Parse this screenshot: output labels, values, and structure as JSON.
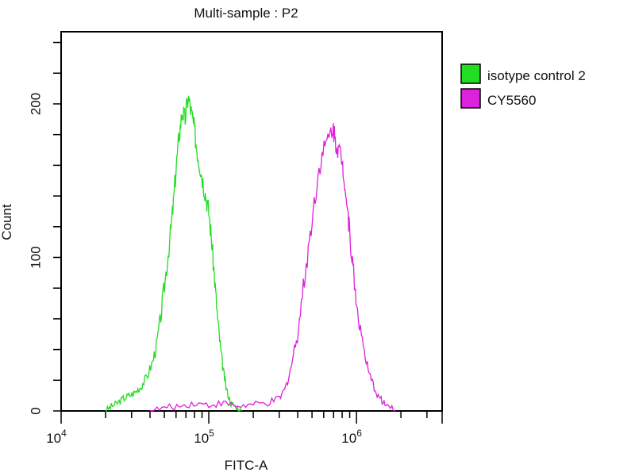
{
  "chart_data": {
    "type": "line",
    "title": "Multi-sample : P2",
    "xlabel": "FITC-A",
    "ylabel": "Count",
    "xscale": "log",
    "xlim_log10": [
      4,
      6.58
    ],
    "ylim": [
      0,
      247
    ],
    "x_ticks": [
      {
        "exp": 4,
        "base": "10",
        "sup": "4"
      },
      {
        "exp": 5,
        "base": "10",
        "sup": "5"
      },
      {
        "exp": 6,
        "base": "10",
        "sup": "6"
      }
    ],
    "y_ticks": [
      0,
      100,
      200
    ],
    "legend_position": "right",
    "series": [
      {
        "name": "isotype control 2",
        "color": "#22dd22",
        "log10_x": [
          4.3,
          4.34,
          4.38,
          4.42,
          4.46,
          4.5,
          4.54,
          4.58,
          4.62,
          4.65,
          4.68,
          4.71,
          4.74,
          4.76,
          4.78,
          4.8,
          4.82,
          4.84,
          4.86,
          4.88,
          4.9,
          4.92,
          4.94,
          4.96,
          4.98,
          5.0,
          5.02,
          5.04,
          5.06,
          5.08,
          5.1,
          5.12,
          5.15,
          5.18,
          5.22
        ],
        "counts": [
          0,
          3,
          5,
          8,
          10,
          12,
          16,
          22,
          32,
          45,
          65,
          90,
          115,
          135,
          160,
          180,
          195,
          190,
          205,
          195,
          185,
          170,
          160,
          150,
          140,
          130,
          110,
          85,
          60,
          40,
          25,
          14,
          5,
          3,
          0
        ]
      },
      {
        "name": "CY5560",
        "color": "#dd22dd",
        "log10_x": [
          4.6,
          4.7,
          4.8,
          4.9,
          5.0,
          5.1,
          5.2,
          5.3,
          5.4,
          5.48,
          5.52,
          5.56,
          5.6,
          5.64,
          5.68,
          5.72,
          5.76,
          5.8,
          5.84,
          5.86,
          5.88,
          5.9,
          5.92,
          5.94,
          5.96,
          5.98,
          6.0,
          6.04,
          6.08,
          6.12,
          6.16,
          6.2,
          6.26
        ],
        "counts": [
          0,
          2,
          3,
          5,
          4,
          5,
          3,
          4,
          5,
          8,
          15,
          30,
          50,
          80,
          110,
          140,
          165,
          175,
          185,
          175,
          170,
          165,
          150,
          130,
          110,
          90,
          70,
          45,
          25,
          15,
          8,
          4,
          0
        ]
      }
    ]
  }
}
